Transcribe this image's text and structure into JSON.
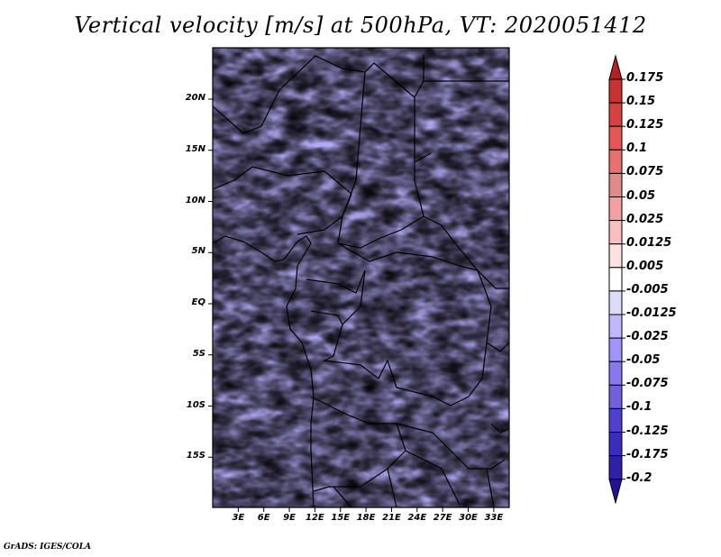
{
  "title": "Vertical velocity [m/s] at 500hPa, VT: 2020051412",
  "footer": "GrADS: IGES/COLA",
  "map": {
    "variable": "Vertical velocity",
    "units": "m/s",
    "level": "500hPa",
    "valid_time": "2020051412",
    "region": "Central Africa",
    "lon_range": [
      0,
      35
    ],
    "lat_range": [
      -20,
      24
    ],
    "lat_ticks": [
      {
        "label": "20N",
        "value": 20
      },
      {
        "label": "15N",
        "value": 15
      },
      {
        "label": "10N",
        "value": 10
      },
      {
        "label": "5N",
        "value": 5
      },
      {
        "label": "EQ",
        "value": 0
      },
      {
        "label": "5S",
        "value": -5
      },
      {
        "label": "10S",
        "value": -10
      },
      {
        "label": "15S",
        "value": -15
      }
    ],
    "lon_ticks": [
      {
        "label": "3E",
        "value": 3
      },
      {
        "label": "6E",
        "value": 6
      },
      {
        "label": "9E",
        "value": 9
      },
      {
        "label": "12E",
        "value": 12
      },
      {
        "label": "15E",
        "value": 15
      },
      {
        "label": "18E",
        "value": 18
      },
      {
        "label": "21E",
        "value": 21
      },
      {
        "label": "24E",
        "value": 24
      },
      {
        "label": "27E",
        "value": 27
      },
      {
        "label": "30E",
        "value": 30
      },
      {
        "label": "33E",
        "value": 33
      }
    ]
  },
  "colorbar": {
    "labels": [
      "0.175",
      "0.15",
      "0.125",
      "0.1",
      "0.075",
      "0.05",
      "0.025",
      "0.0125",
      "0.005",
      "-0.005",
      "-0.0125",
      "-0.025",
      "-0.05",
      "-0.075",
      "-0.1",
      "-0.125",
      "-0.175",
      "-0.2"
    ],
    "colors": [
      "#b22222",
      "#c83232",
      "#d94040",
      "#e55656",
      "#e87070",
      "#e08a8a",
      "#f5a0a0",
      "#fac0c0",
      "#fde0e0",
      "#ffffff",
      "#dcdcfa",
      "#c0b8fa",
      "#a096fa",
      "#8778ee",
      "#7060dc",
      "#5040d0",
      "#3c2cbe",
      "#2e20a8",
      "#22129a"
    ],
    "over_color": "#b22222",
    "under_color": "#22129a"
  }
}
